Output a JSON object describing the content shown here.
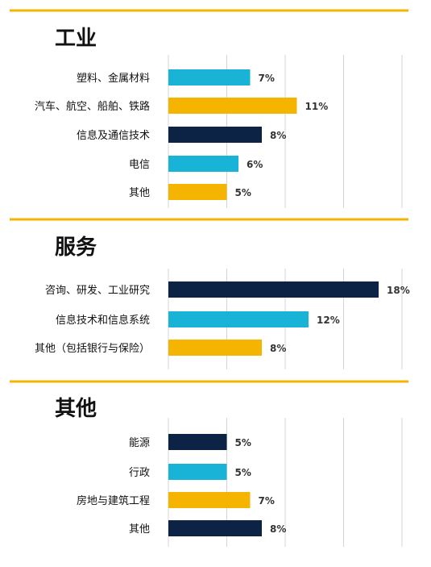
{
  "colors": {
    "dark": "#0d2345",
    "cyan": "#18b3d6",
    "gold": "#f5b400",
    "divider": "#f5b400"
  },
  "chart_data": {
    "type": "bar",
    "orientation": "horizontal",
    "xlim": [
      0,
      20
    ],
    "grid": true,
    "value_suffix": "%",
    "sections": [
      {
        "title": "工业",
        "categories": [
          "塑料、金属材料",
          "汽车、航空、船舶、铁路",
          "信息及通信技术",
          "电信",
          "其他"
        ],
        "values": [
          7,
          11,
          8,
          6,
          5
        ],
        "colors": [
          "cyan",
          "gold",
          "dark",
          "cyan",
          "gold"
        ]
      },
      {
        "title": "服务",
        "categories": [
          "咨询、研发、工业研究",
          "信息技术和信息系统",
          "其他（包括银行与保险）"
        ],
        "values": [
          18,
          12,
          8
        ],
        "colors": [
          "dark",
          "cyan",
          "gold"
        ]
      },
      {
        "title": "其他",
        "categories": [
          "能源",
          "行政",
          "房地与建筑工程",
          "其他"
        ],
        "values": [
          5,
          5,
          7,
          8
        ],
        "colors": [
          "dark",
          "cyan",
          "gold",
          "dark"
        ]
      }
    ]
  }
}
